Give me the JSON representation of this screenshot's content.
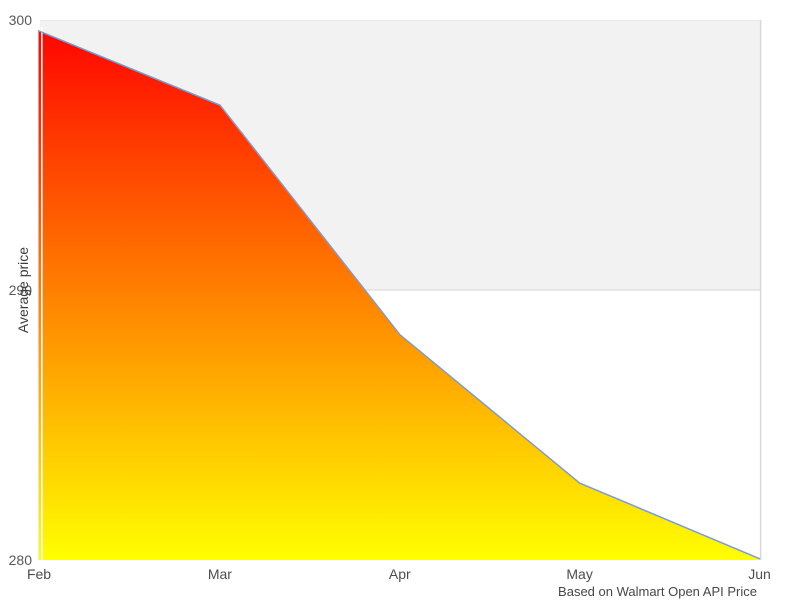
{
  "chart_data": {
    "type": "area",
    "title": "",
    "xlabel": "",
    "ylabel": "Average price",
    "caption": "Based on Walmart Open API Price",
    "categories": [
      "Feb",
      "Mar",
      "Apr",
      "May",
      "Jun"
    ],
    "values": [
      299.6,
      296.85,
      288.35,
      282.85,
      280.05
    ],
    "series": [
      {
        "name": "Average price",
        "values": [
          299.6,
          296.85,
          288.35,
          282.85,
          280.05
        ]
      }
    ],
    "ylim": [
      280,
      300
    ],
    "yticks": [
      300,
      290,
      280
    ],
    "grid": "horizontal shaded band between 290 and 300, no visible gridlines over series",
    "legend_position": "none",
    "colors": {
      "area_gradient_top": "#ff0000",
      "area_gradient_bottom": "#ffff00",
      "line": "#7b9cd0",
      "band_fill": "#f2f2f2",
      "band_border": "#dcdcdc",
      "background": "#ffffff",
      "tick_label": "#585858",
      "axis_title": "#3d3d3d",
      "caption_text": "#474747"
    }
  }
}
